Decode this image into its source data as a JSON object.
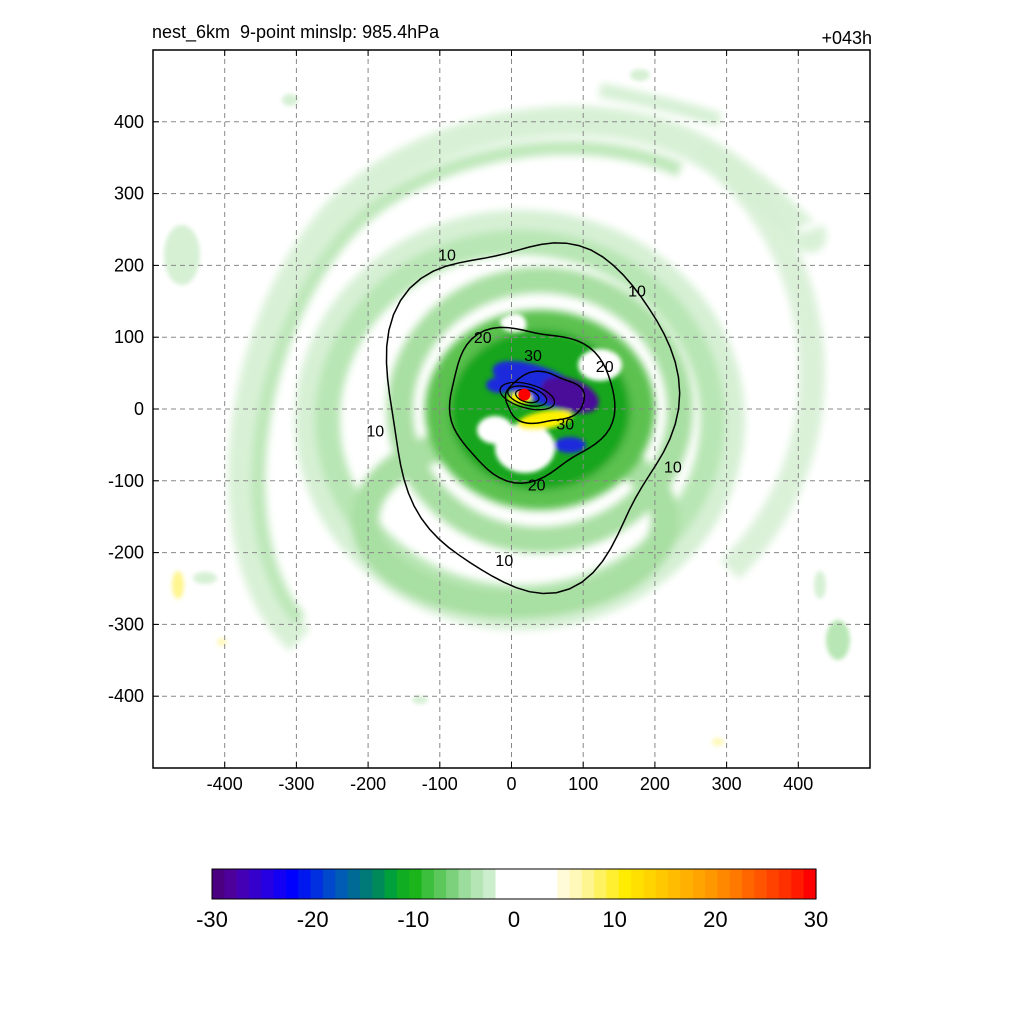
{
  "title": {
    "left": "nest_6km  9-point minslp: 985.4hPa",
    "right": "+043h"
  },
  "colors": {
    "green_light": "#d6f0d4",
    "green_mid": "#a8dfa2",
    "green": "#5cc14f",
    "green_dark": "#16a51a",
    "blue": "#1a2bdc",
    "purple": "#4a0a9a",
    "yellow": "#fff200",
    "orange": "#ffb300",
    "red": "#ff0000",
    "contour": "#000000"
  },
  "chart_data": {
    "type": "heatmap",
    "title": "nest_6km  9-point minslp: 985.4hPa",
    "forecast_hour": "+043h",
    "xlim": [
      -500,
      500
    ],
    "ylim": [
      -500,
      500
    ],
    "x_ticks": [
      -400,
      -300,
      -200,
      -100,
      0,
      100,
      200,
      300,
      400
    ],
    "y_ticks": [
      400,
      300,
      200,
      100,
      0,
      -100,
      -200,
      -300,
      -400
    ],
    "x_tick_labels": [
      "-400",
      "-300",
      "-200",
      "-100",
      "0",
      "100",
      "200",
      "300",
      "400"
    ],
    "y_tick_labels": [
      "400",
      "300",
      "200",
      "100",
      "0",
      "-100",
      "-200",
      "-300",
      "-400"
    ],
    "grid": true,
    "center_marker": {
      "x": 18,
      "y": 20,
      "color": "#ff0000"
    },
    "contours": [
      {
        "level": 10,
        "label": "10",
        "rx": 200,
        "ry": 240,
        "cx": 25,
        "cy": 0
      },
      {
        "level": 20,
        "label": "20",
        "rx": 115,
        "ry": 105,
        "cx": 25,
        "cy": 10
      },
      {
        "level": 30,
        "label": "30",
        "rx": 55,
        "ry": 35,
        "cx": 45,
        "cy": 15
      }
    ],
    "contour_labels": [
      {
        "text": "10",
        "x": -90,
        "y": 215
      },
      {
        "text": "10",
        "x": 175,
        "y": 165
      },
      {
        "text": "10",
        "x": -190,
        "y": -30
      },
      {
        "text": "10",
        "x": 225,
        "y": -80
      },
      {
        "text": "10",
        "x": -10,
        "y": -210
      },
      {
        "text": "20",
        "x": -40,
        "y": 100
      },
      {
        "text": "30",
        "x": 30,
        "y": 75
      },
      {
        "text": "20",
        "x": 130,
        "y": 60
      },
      {
        "text": "30",
        "x": 75,
        "y": -20
      },
      {
        "text": "20",
        "x": 35,
        "y": -105
      }
    ],
    "colorbar": {
      "min": -30,
      "max": 30,
      "tick_values": [
        -30,
        -20,
        -10,
        0,
        10,
        20,
        30
      ],
      "tick_labels": [
        "-30",
        "-20",
        "-10",
        "0",
        "10",
        "20",
        "30"
      ],
      "colors": [
        "#4b0082",
        "#4e009a",
        "#4400b4",
        "#3600cc",
        "#2600e2",
        "#1400f4",
        "#0000ff",
        "#0018f0",
        "#0030e0",
        "#0048cc",
        "#005cb4",
        "#006a96",
        "#007a78",
        "#008a5a",
        "#00a03c",
        "#10ad22",
        "#1bb41b",
        "#3cbf3c",
        "#5cc85c",
        "#7cd27c",
        "#9cdc9c",
        "#b5e5b5",
        "#cdeecd",
        "#ffffff",
        "#ffffff",
        "#ffffff",
        "#ffffff",
        "#ffffff",
        "#fffbd8",
        "#fff8b8",
        "#fff590",
        "#fff260",
        "#ffef30",
        "#ffec00",
        "#ffe000",
        "#ffd400",
        "#ffc800",
        "#ffbc00",
        "#ffb000",
        "#ffa400",
        "#ff9800",
        "#ff8800",
        "#ff7800",
        "#ff6600",
        "#ff5400",
        "#ff4200",
        "#ff3000",
        "#ff1a00",
        "#ff0000"
      ]
    }
  }
}
